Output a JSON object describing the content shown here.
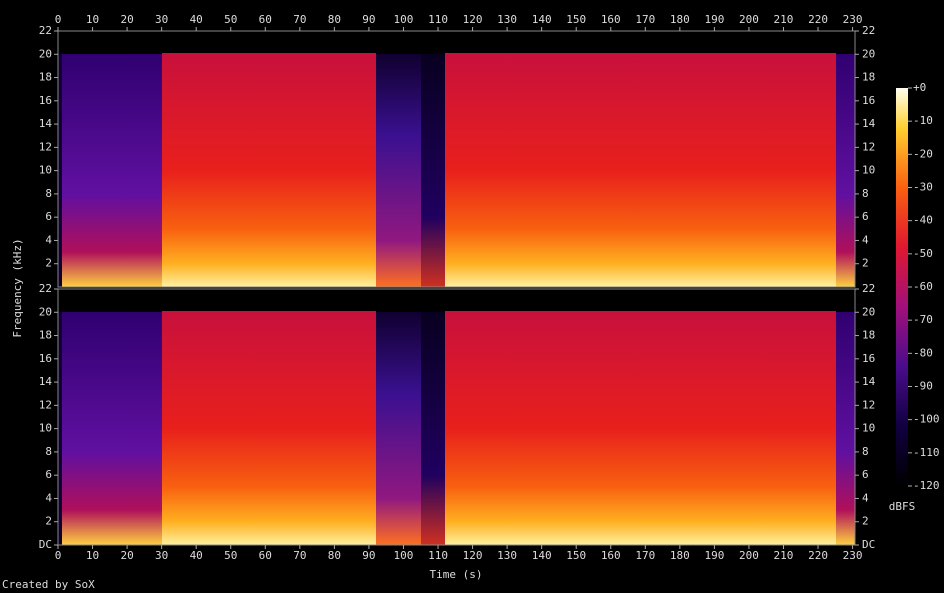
{
  "footer": "Created by SoX",
  "ylabel": "Frequency (kHz)",
  "xlabel": "Time (s)",
  "colorbar": {
    "label": "dBFS",
    "lim": [
      -120,
      0
    ],
    "ticks": [
      {
        "value": 0,
        "label": "+0"
      },
      -10,
      -20,
      -30,
      -40,
      -50,
      -60,
      -70,
      -80,
      -90,
      -100,
      -110,
      -120
    ]
  },
  "chart_data": [
    {
      "type": "spectrogram",
      "xlim": [
        0,
        230.7
      ],
      "xticks": [
        0,
        10,
        20,
        30,
        40,
        50,
        60,
        70,
        80,
        90,
        100,
        110,
        120,
        130,
        140,
        150,
        160,
        170,
        180,
        190,
        200,
        210,
        220,
        230
      ],
      "ylim": [
        0,
        22
      ],
      "yticks": [
        2,
        4,
        6,
        8,
        10,
        12,
        14,
        16,
        18,
        20,
        22
      ]
    },
    {
      "type": "spectrogram",
      "xlim": [
        0,
        230.7
      ],
      "xticks": [
        0,
        10,
        20,
        30,
        40,
        50,
        60,
        70,
        80,
        90,
        100,
        110,
        120,
        130,
        140,
        150,
        160,
        170,
        180,
        190,
        200,
        210,
        220,
        230
      ],
      "ylim": [
        0,
        22
      ],
      "yticks": [
        {
          "value": 0,
          "label": "DC"
        },
        2,
        4,
        6,
        8,
        10,
        12,
        14,
        16,
        18,
        20,
        22
      ]
    }
  ]
}
